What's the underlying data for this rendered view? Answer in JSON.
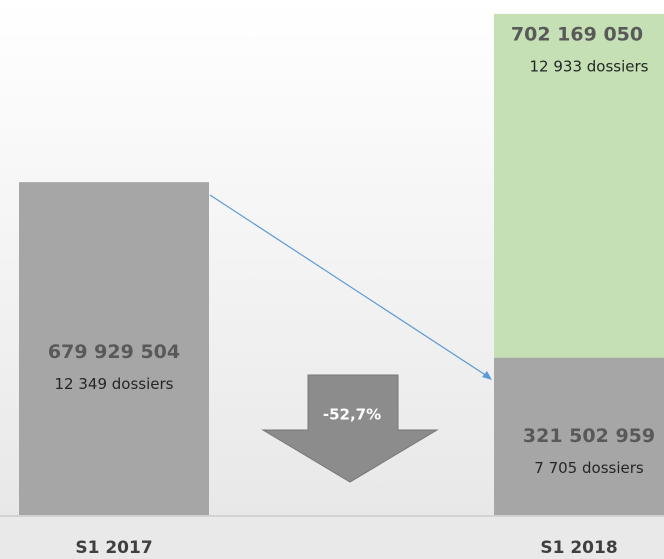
{
  "chart_data": {
    "type": "stacked-bar",
    "categories": [
      "S1 2017",
      "S1 2018"
    ],
    "series": [
      {
        "color": "#a6a6a6",
        "values": [
          679929504,
          321502959
        ],
        "value_labels": [
          "679 929 504",
          "321 502 959"
        ],
        "sublabels": [
          "12 349 dossiers",
          "7 705 dossiers"
        ]
      },
      {
        "color": "#c5e0b4",
        "values": [
          null,
          702169050
        ],
        "value_labels": [
          null,
          "702 169 050"
        ],
        "sublabels": [
          null,
          "12 933 dossiers"
        ]
      }
    ],
    "ylim": [
      0,
      1050000000
    ],
    "annotation": "-52,7%"
  }
}
